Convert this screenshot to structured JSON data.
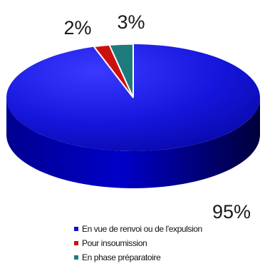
{
  "chart_data": {
    "type": "pie",
    "style": "3d",
    "categories": [
      "En vue de renvoi ou de l'expulsion",
      "Pour insoumission",
      "En phase préparatoire"
    ],
    "values": [
      95,
      2,
      3
    ],
    "data_labels": [
      "95%",
      "2%",
      "3%"
    ],
    "colors": [
      "#1010cc",
      "#cc1010",
      "#1e7b7b"
    ],
    "legend_position": "bottom"
  }
}
